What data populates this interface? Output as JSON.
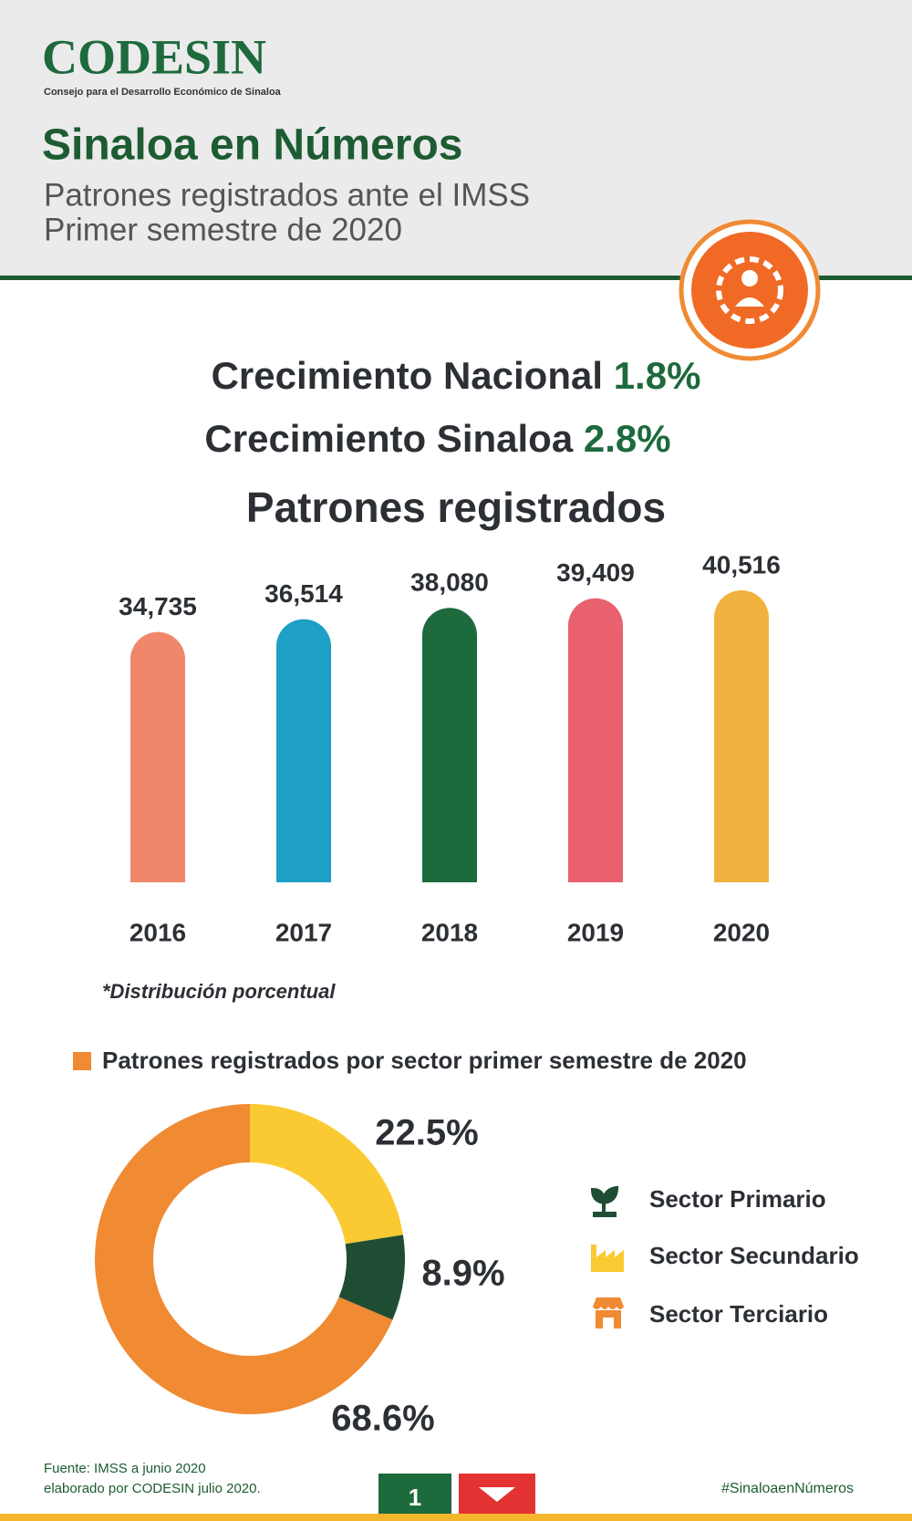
{
  "header": {
    "logo": "CODESIN",
    "logo_subtitle": "Consejo para el Desarrollo Económico de Sinaloa",
    "title": "Sinaloa en Números",
    "subtitle_lines": [
      "Patrones registrados ante el IMSS",
      "Primer semestre de 2020"
    ]
  },
  "highlights": [
    {
      "label": "Crecimiento Nacional",
      "value": "1.8%"
    },
    {
      "label": "Crecimiento Sinaloa",
      "value": "2.8%"
    }
  ],
  "chart_data": [
    {
      "type": "bar",
      "title": "Patrones registrados",
      "categories": [
        "2016",
        "2017",
        "2018",
        "2019",
        "2020"
      ],
      "values": [
        34735,
        36514,
        38080,
        39409,
        40516
      ],
      "value_labels": [
        "34,735",
        "36,514",
        "38,080",
        "39,409",
        "40,516"
      ],
      "colors": [
        "#f0876a",
        "#1d9fc6",
        "#1d6a3d",
        "#e9606f",
        "#f2b23f"
      ]
    },
    {
      "type": "pie",
      "donut": true,
      "note": "*Distribución porcentual",
      "title": "Patrones registrados por sector primer semestre de 2020",
      "categories": [
        "Sector Secundario",
        "Sector Primario",
        "Sector Terciario"
      ],
      "values": [
        22.5,
        8.9,
        68.6
      ],
      "value_labels": [
        "22.5%",
        "8.9%",
        "68.6%"
      ],
      "colors": [
        "#fbc932",
        "#1f4d34",
        "#f08a33"
      ]
    }
  ],
  "footer": {
    "source_lines": [
      "Fuente: IMSS a junio 2020",
      "elaborado por CODESIN julio 2020."
    ],
    "page": "1",
    "hashtag": "#SinaloaenNúmeros"
  }
}
